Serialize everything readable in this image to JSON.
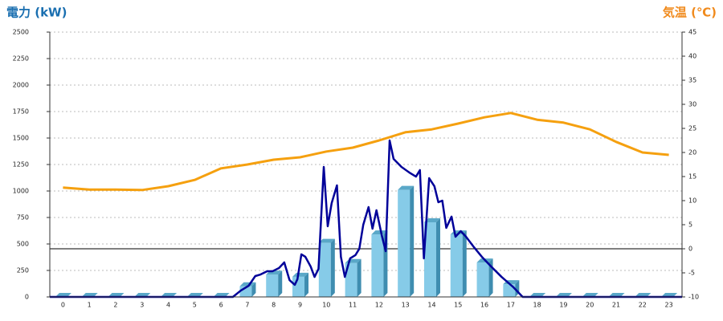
{
  "chart_data": {
    "type": "bar-line",
    "y_axis_title": "電力 (kW)",
    "y2_axis_title": "気温 (℃)",
    "categories": [
      "0",
      "1",
      "2",
      "3",
      "4",
      "5",
      "6",
      "7",
      "8",
      "9",
      "10",
      "11",
      "12",
      "13",
      "14",
      "15",
      "16",
      "17",
      "18",
      "19",
      "20",
      "21",
      "22",
      "23"
    ],
    "series": [
      {
        "kind": "bar",
        "color": "#86cbe8",
        "values": [
          0,
          0,
          0,
          0,
          0,
          0,
          0,
          100,
          210,
          190,
          510,
          320,
          590,
          1010,
          705,
          590,
          325,
          120,
          0,
          0,
          0,
          0,
          0,
          0
        ]
      },
      {
        "kind": "line",
        "color": "#000099",
        "x": [
          -0.5,
          6.45,
          6.75,
          7.05,
          7.3,
          7.5,
          7.75,
          7.95,
          8.2,
          8.4,
          8.6,
          8.8,
          8.9,
          9.05,
          9.2,
          9.4,
          9.55,
          9.7,
          9.9,
          10.05,
          10.2,
          10.4,
          10.55,
          10.7,
          10.9,
          11.1,
          11.25,
          11.4,
          11.6,
          11.75,
          11.9,
          12.1,
          12.25,
          12.4,
          12.55,
          12.85,
          13.15,
          13.4,
          13.55,
          13.7,
          13.9,
          14.1,
          14.25,
          14.4,
          14.55,
          14.75,
          14.9,
          15.1,
          15.3,
          15.6,
          15.9,
          16.25,
          16.65,
          17.1,
          17.45,
          23.5
        ],
        "values": [
          0,
          0,
          60,
          106,
          197,
          212,
          242,
          242,
          273,
          326,
          159,
          114,
          167,
          402,
          379,
          288,
          189,
          265,
          1227,
          667,
          886,
          1053,
          379,
          189,
          364,
          394,
          455,
          682,
          848,
          644,
          818,
          583,
          432,
          1477,
          1303,
          1227,
          1174,
          1136,
          1197,
          364,
          1121,
          1045,
          894,
          909,
          652,
          758,
          568,
          621,
          568,
          470,
          379,
          288,
          189,
          91,
          0,
          0
        ]
      },
      {
        "kind": "line",
        "axis": "y2",
        "color": "#f5a00f",
        "values": [
          12.7,
          12.3,
          12.3,
          12.2,
          13,
          14.3,
          16.7,
          17.5,
          18.5,
          19,
          20.2,
          21,
          22.5,
          24.2,
          24.8,
          26,
          27.3,
          28.2,
          26.8,
          26.2,
          24.8,
          22.2,
          20,
          19.5
        ]
      }
    ],
    "ylim": [
      0,
      2500
    ],
    "yticks": [
      0,
      250,
      500,
      750,
      1000,
      1250,
      1500,
      1750,
      2000,
      2250,
      2500
    ],
    "y2lim": [
      -10,
      45
    ],
    "y2ticks": [
      -10,
      -5,
      0,
      5,
      10,
      15,
      20,
      25,
      30,
      35,
      40,
      45
    ],
    "xlim": [
      -0.5,
      23.5
    ],
    "grid": true,
    "y2_zero_line": true,
    "y_axis_color": "#1a6fb0",
    "y2_axis_color": "#f08a1c"
  }
}
